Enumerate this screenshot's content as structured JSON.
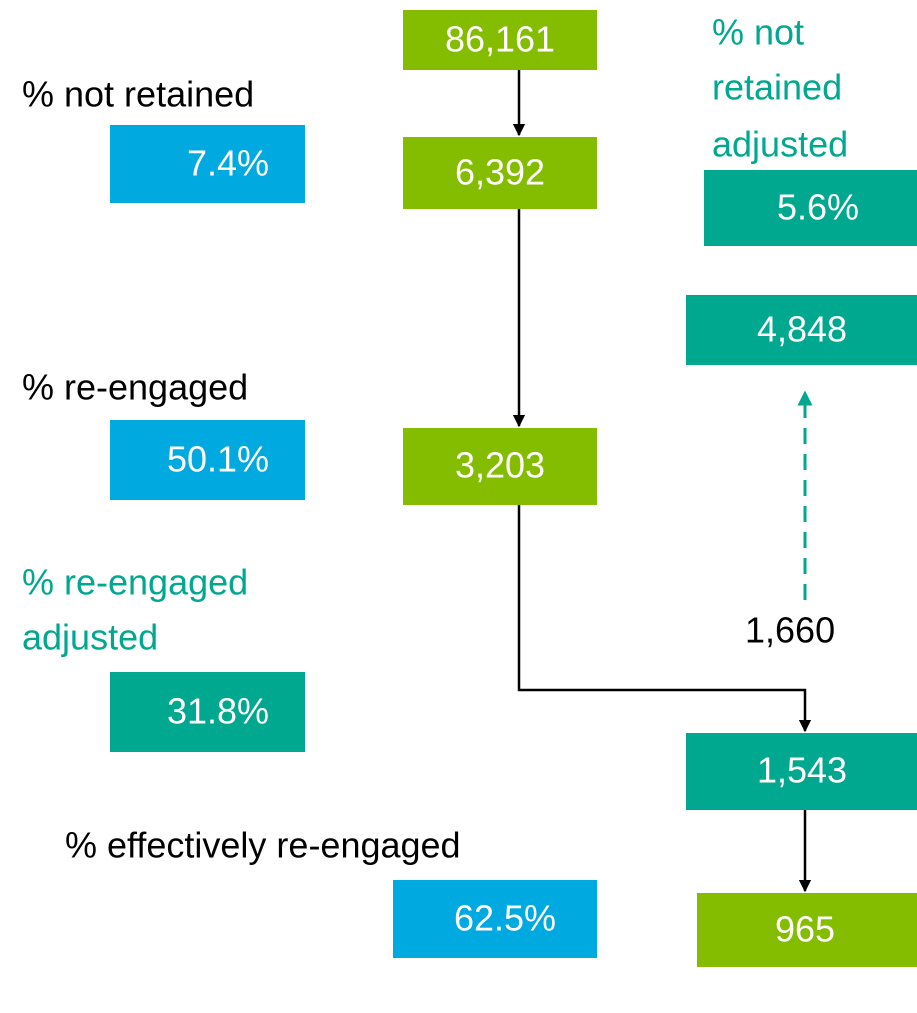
{
  "flow": {
    "nodes": [
      {
        "label": "86,161"
      },
      {
        "label": "6,392"
      },
      {
        "label": "3,203"
      },
      {
        "label": "4,848"
      },
      {
        "label": "1,543"
      },
      {
        "label": "965"
      }
    ],
    "dashed_label": "1,660",
    "metrics": [
      {
        "label": [
          "% not retained"
        ],
        "value": "7.4%"
      },
      {
        "label": [
          "% re-engaged"
        ],
        "value": "50.1%"
      },
      {
        "label": [
          "% re-engaged",
          "adjusted"
        ],
        "value": "31.8%"
      },
      {
        "label": [
          "% effectively re-engaged"
        ],
        "value": "62.5%"
      },
      {
        "label": [
          "% not",
          "retained",
          "adjusted"
        ],
        "value": "5.6%"
      }
    ]
  }
}
